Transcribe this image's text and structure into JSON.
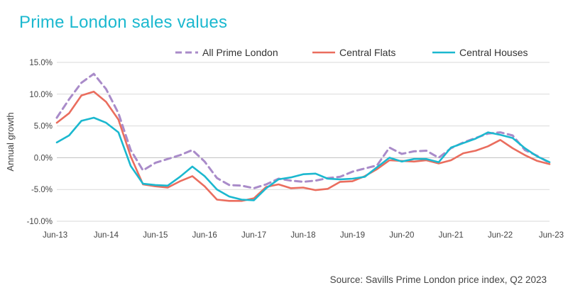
{
  "title": "Prime London sales values",
  "source": "Source: Savills Prime London price index, Q2 2023",
  "chart_data": {
    "type": "line",
    "title": "Prime London sales values",
    "ylabel": "Annual growth",
    "xlabel": "",
    "ylim": [
      -10,
      15
    ],
    "yticks": [
      -10,
      -5,
      0,
      5,
      10,
      15
    ],
    "ytick_labels": [
      "-10.0%",
      "-5.0%",
      "0.0%",
      "5.0%",
      "10.0%",
      "15.0%"
    ],
    "grid": true,
    "legend_placement": "top",
    "x": [
      "Jun-13",
      "Sep-13",
      "Dec-13",
      "Mar-14",
      "Jun-14",
      "Sep-14",
      "Dec-14",
      "Mar-15",
      "Jun-15",
      "Sep-15",
      "Dec-15",
      "Mar-16",
      "Jun-16",
      "Sep-16",
      "Dec-16",
      "Mar-17",
      "Jun-17",
      "Sep-17",
      "Dec-17",
      "Mar-18",
      "Jun-18",
      "Sep-18",
      "Dec-18",
      "Mar-19",
      "Jun-19",
      "Sep-19",
      "Dec-19",
      "Mar-20",
      "Jun-20",
      "Sep-20",
      "Dec-20",
      "Mar-21",
      "Jun-21",
      "Sep-21",
      "Dec-21",
      "Mar-22",
      "Jun-22",
      "Sep-22",
      "Dec-22",
      "Mar-23",
      "Jun-23"
    ],
    "xtick_labels": [
      "Jun-13",
      "Jun-14",
      "Jun-15",
      "Jun-16",
      "Jun-17",
      "Jun-18",
      "Jun-19",
      "Jun-20",
      "Jun-21",
      "Jun-22",
      "Jun-23"
    ],
    "series": [
      {
        "name": "All Prime London",
        "color": "#a98bc9",
        "dash": true,
        "values": [
          6.3,
          9.2,
          11.8,
          13.2,
          10.8,
          7.0,
          1.2,
          -2.0,
          -0.8,
          -0.2,
          0.4,
          1.2,
          -0.6,
          -3.2,
          -4.3,
          -4.4,
          -4.8,
          -4.2,
          -3.3,
          -3.6,
          -3.8,
          -3.6,
          -3.2,
          -3.0,
          -2.2,
          -1.7,
          -1.2,
          1.6,
          0.6,
          1.0,
          1.1,
          0.0,
          1.5,
          2.4,
          3.1,
          3.8,
          4.0,
          3.5,
          1.2,
          0.3,
          -0.8
        ]
      },
      {
        "name": "Central Flats",
        "color": "#ea6d5e",
        "dash": false,
        "values": [
          5.5,
          7.0,
          9.8,
          10.4,
          8.8,
          6.0,
          0.2,
          -4.2,
          -4.5,
          -4.7,
          -3.7,
          -2.9,
          -4.5,
          -6.6,
          -6.8,
          -6.8,
          -6.4,
          -4.6,
          -4.2,
          -4.8,
          -4.7,
          -5.1,
          -4.9,
          -3.8,
          -3.7,
          -2.9,
          -1.8,
          -0.4,
          -0.5,
          -0.6,
          -0.4,
          -0.9,
          -0.4,
          0.7,
          1.1,
          1.8,
          2.8,
          1.5,
          0.4,
          -0.5,
          -1.0
        ]
      },
      {
        "name": "Central Houses",
        "color": "#1bb8cf",
        "dash": false,
        "values": [
          2.4,
          3.5,
          5.8,
          6.3,
          5.5,
          4.0,
          -1.3,
          -4.1,
          -4.3,
          -4.4,
          -3.0,
          -1.4,
          -2.9,
          -5.0,
          -6.1,
          -6.6,
          -6.7,
          -4.8,
          -3.4,
          -3.1,
          -2.6,
          -2.5,
          -3.3,
          -3.4,
          -3.3,
          -3.0,
          -1.5,
          0.0,
          -0.6,
          -0.2,
          -0.2,
          -0.7,
          1.6,
          2.3,
          3.0,
          4.0,
          3.6,
          3.1,
          1.5,
          0.2,
          -0.7
        ]
      }
    ]
  }
}
